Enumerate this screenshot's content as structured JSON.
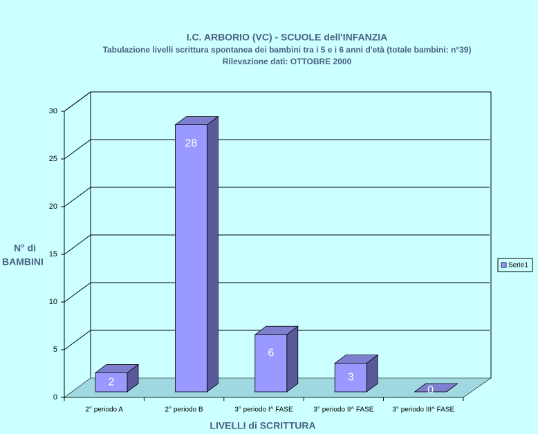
{
  "chart_data": {
    "type": "bar",
    "title": "I.C. ARBORIO (VC) - SCUOLE dell'INFANZIA",
    "subtitle": [
      "Tabulazione livelli scrittura spontanea dei bambini tra i 5 e i 6 anni d'età (totale bambini: n°39)",
      "Rilevazione dati: OTTOBRE 2000"
    ],
    "x_label": "LIVELLI di SCRITTURA",
    "y_label": [
      "N° di",
      "BAMBINI"
    ],
    "categories": [
      "2° periodo A",
      "2° periodo B",
      "3° periodo I^ FASE",
      "3° periodo II^ FASE",
      "3° periodo III^ FASE"
    ],
    "series": [
      {
        "name": "Serie1",
        "color": "#9999ff",
        "values": [
          2,
          28,
          6,
          3,
          0
        ]
      }
    ],
    "ylim": [
      0,
      30
    ],
    "yticks": [
      0,
      5,
      10,
      15,
      20,
      25,
      30
    ],
    "grid": true,
    "legend": "right"
  }
}
